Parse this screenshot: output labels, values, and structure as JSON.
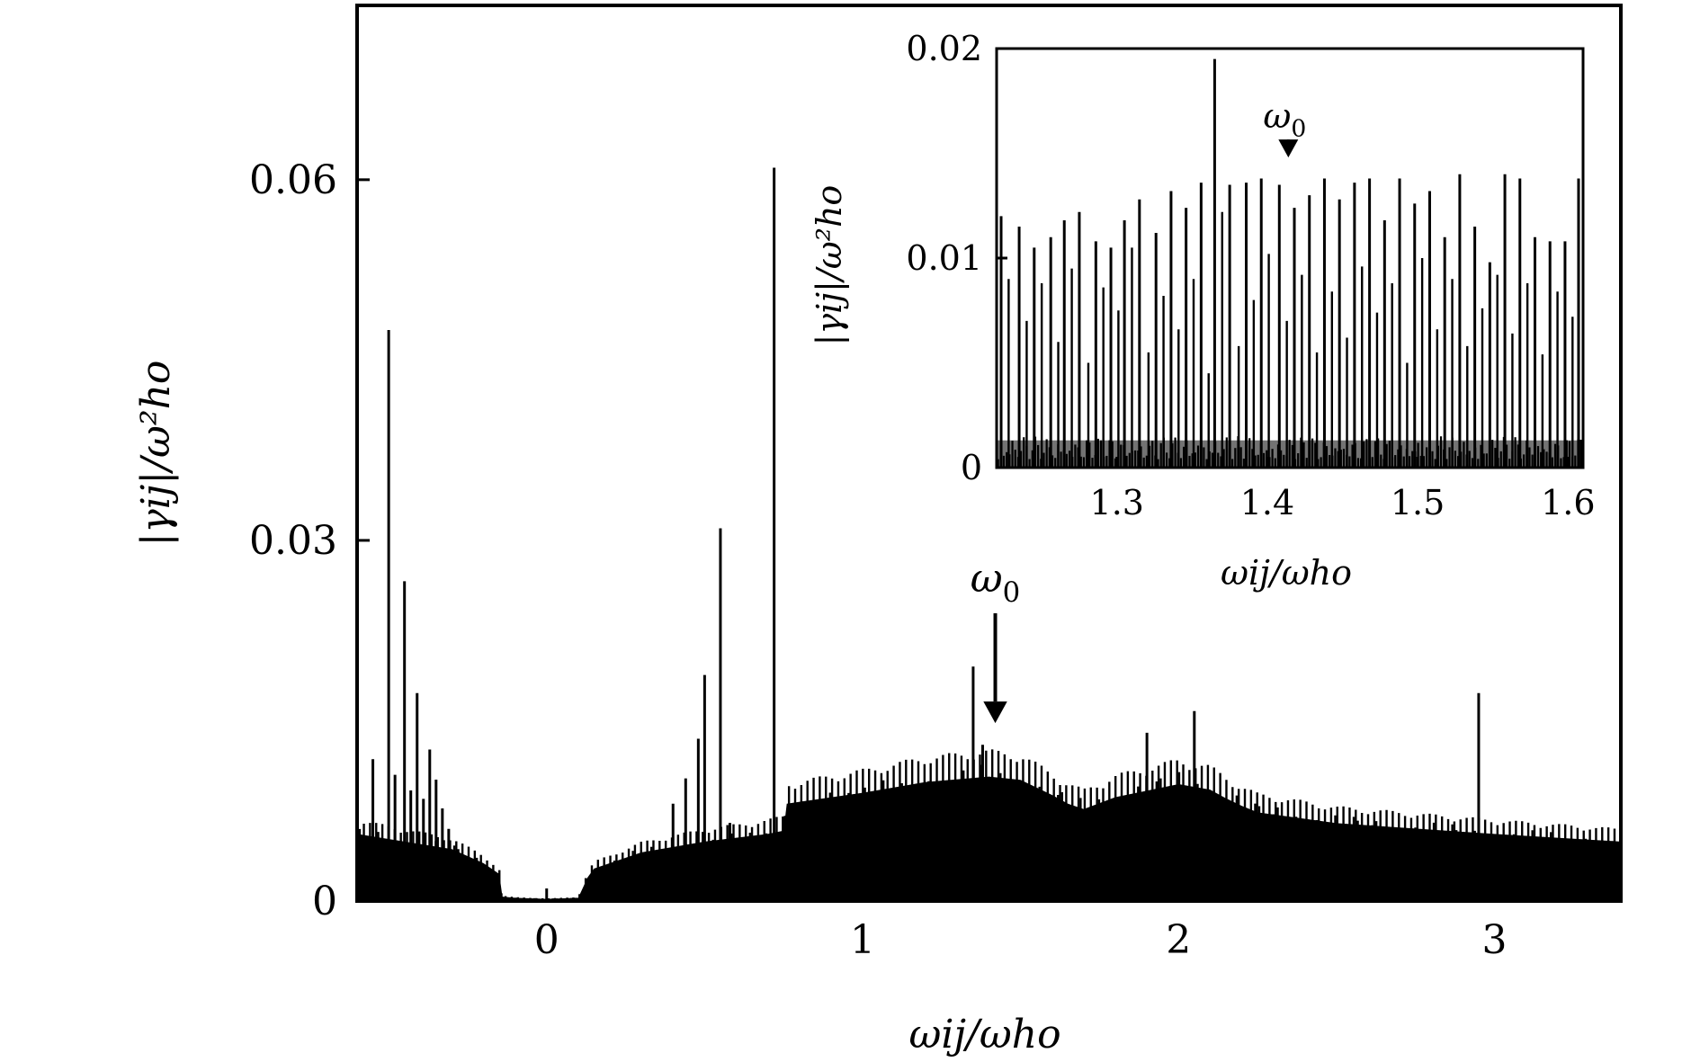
{
  "chart_data": [
    {
      "id": "main",
      "type": "bar",
      "style": "spectral stick plot (dense vertical lines)",
      "xlabel": "ωij/ωho",
      "ylabel": "|γij|/ω²ho",
      "xlim": [
        -0.6,
        3.4
      ],
      "ylim": [
        0,
        0.0745
      ],
      "xticks": [
        0,
        1,
        2,
        3
      ],
      "xtick_labels": [
        "0",
        "1",
        "2",
        "3"
      ],
      "yticks": [
        0,
        0.03,
        0.06
      ],
      "ytick_labels": [
        "0",
        "0.03",
        "0.06"
      ],
      "grid": false,
      "envelope": {
        "x": [
          -0.6,
          -0.45,
          -0.3,
          -0.2,
          -0.15,
          -0.14,
          -0.1,
          0.0,
          0.1,
          0.13,
          0.15,
          0.3,
          0.5,
          0.7,
          0.75,
          0.76,
          1.0,
          1.2,
          1.4,
          1.5,
          1.6,
          1.65,
          1.7,
          1.8,
          1.9,
          2.0,
          2.1,
          2.15,
          2.2,
          2.25,
          2.3,
          2.35,
          2.5,
          3.0,
          3.4
        ],
        "y": [
          0.0062,
          0.0055,
          0.0048,
          0.0035,
          0.0025,
          0.0004,
          0.0003,
          0.0002,
          0.0003,
          0.0022,
          0.003,
          0.0045,
          0.0055,
          0.0062,
          0.0065,
          0.009,
          0.01,
          0.011,
          0.0115,
          0.0112,
          0.0098,
          0.009,
          0.0085,
          0.0096,
          0.0102,
          0.0108,
          0.0103,
          0.0095,
          0.0088,
          0.0082,
          0.008,
          0.0078,
          0.0072,
          0.0062,
          0.0055
        ]
      },
      "lines": {
        "x": [
          -0.55,
          -0.5,
          -0.48,
          -0.45,
          -0.43,
          -0.41,
          -0.39,
          -0.37,
          -0.35,
          -0.33,
          -0.31,
          0.4,
          0.44,
          0.48,
          0.5,
          0.55,
          0.58,
          0.72,
          1.35,
          1.38,
          1.9,
          2.05,
          2.95
        ],
        "y": [
          0.0118,
          0.0475,
          0.0105,
          0.0266,
          0.0092,
          0.0173,
          0.0085,
          0.0126,
          0.0101,
          0.0077,
          0.006,
          0.0081,
          0.0102,
          0.0135,
          0.0188,
          0.031,
          0.0065,
          0.061,
          0.0195,
          0.013,
          0.014,
          0.0158,
          0.0173
        ]
      },
      "annotations": [
        {
          "text": "ω0",
          "x": 1.42,
          "y": 0.0148,
          "kind": "downward arrow marking ω0"
        }
      ]
    },
    {
      "id": "inset",
      "type": "bar",
      "style": "spectral stick plot (zoomed inset)",
      "xlabel": "ωij/ωho",
      "ylabel": "|γij|/ω²ho",
      "xlim": [
        1.22,
        1.61
      ],
      "ylim": [
        0,
        0.02
      ],
      "xticks": [
        1.3,
        1.4,
        1.5,
        1.6
      ],
      "xtick_labels": [
        "1.3",
        "1.4",
        "1.5",
        "1.6"
      ],
      "yticks": [
        0,
        0.01,
        0.02
      ],
      "ytick_labels": [
        "0",
        "0.01",
        "0.02"
      ],
      "grid": false,
      "tall_lines": {
        "x": [
          1.223,
          1.235,
          1.245,
          1.256,
          1.265,
          1.275,
          1.286,
          1.296,
          1.305,
          1.315,
          1.326,
          1.336,
          1.346,
          1.356,
          1.365,
          1.375,
          1.386,
          1.396,
          1.408,
          1.418,
          1.428,
          1.438,
          1.448,
          1.458,
          1.468,
          1.478,
          1.488,
          1.498,
          1.508,
          1.518,
          1.528,
          1.538,
          1.548,
          1.558,
          1.568,
          1.578,
          1.588,
          1.598,
          1.607
        ],
        "y": [
          0.012,
          0.0115,
          0.0105,
          0.011,
          0.0118,
          0.0122,
          0.0108,
          0.0105,
          0.0118,
          0.0128,
          0.0112,
          0.0132,
          0.0124,
          0.0136,
          0.0195,
          0.0135,
          0.0136,
          0.0138,
          0.0135,
          0.0124,
          0.013,
          0.0138,
          0.0128,
          0.0136,
          0.0138,
          0.0118,
          0.0138,
          0.0126,
          0.0132,
          0.011,
          0.014,
          0.0115,
          0.0098,
          0.014,
          0.0138,
          0.011,
          0.0108,
          0.0108,
          0.0138
        ]
      },
      "mid_lines": {
        "x": [
          1.228,
          1.24,
          1.25,
          1.261,
          1.27,
          1.281,
          1.291,
          1.301,
          1.31,
          1.321,
          1.331,
          1.341,
          1.351,
          1.361,
          1.37,
          1.381,
          1.391,
          1.401,
          1.413,
          1.423,
          1.433,
          1.443,
          1.453,
          1.463,
          1.473,
          1.483,
          1.493,
          1.503,
          1.513,
          1.523,
          1.533,
          1.543,
          1.553,
          1.563,
          1.573,
          1.583,
          1.593,
          1.603
        ],
        "y": [
          0.009,
          0.007,
          0.0088,
          0.006,
          0.0095,
          0.005,
          0.0086,
          0.0075,
          0.0105,
          0.0055,
          0.0082,
          0.0066,
          0.009,
          0.0045,
          0.0122,
          0.0058,
          0.008,
          0.0102,
          0.007,
          0.0092,
          0.0055,
          0.0084,
          0.0062,
          0.0096,
          0.0074,
          0.0088,
          0.005,
          0.01,
          0.0066,
          0.009,
          0.0058,
          0.0076,
          0.0092,
          0.0064,
          0.0088,
          0.0054,
          0.0084,
          0.0072
        ]
      },
      "annotations": [
        {
          "text": "ω0",
          "x": 1.414,
          "y": 0.0148,
          "kind": "downward arrow marking ω0"
        }
      ]
    }
  ],
  "colors": {
    "ink": "#000000",
    "background": "#ffffff"
  }
}
